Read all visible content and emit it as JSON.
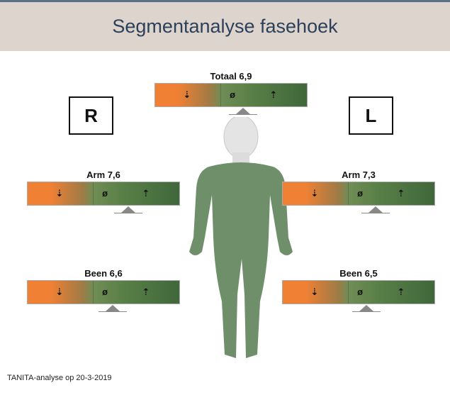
{
  "header": {
    "title": "Segmentanalyse fasehoek"
  },
  "sides": {
    "right": "R",
    "left": "L"
  },
  "symbols": [
    "⇣",
    "ø",
    "⇡"
  ],
  "segments": [
    {
      "label": "Totaal 6,9"
    },
    {
      "label": "Arm 7,6"
    },
    {
      "label": "Arm 7,3"
    },
    {
      "label": "Been 6,6"
    },
    {
      "label": "Been 6,5"
    }
  ],
  "footer": "TANITA-analyse op 20-3-2019"
}
